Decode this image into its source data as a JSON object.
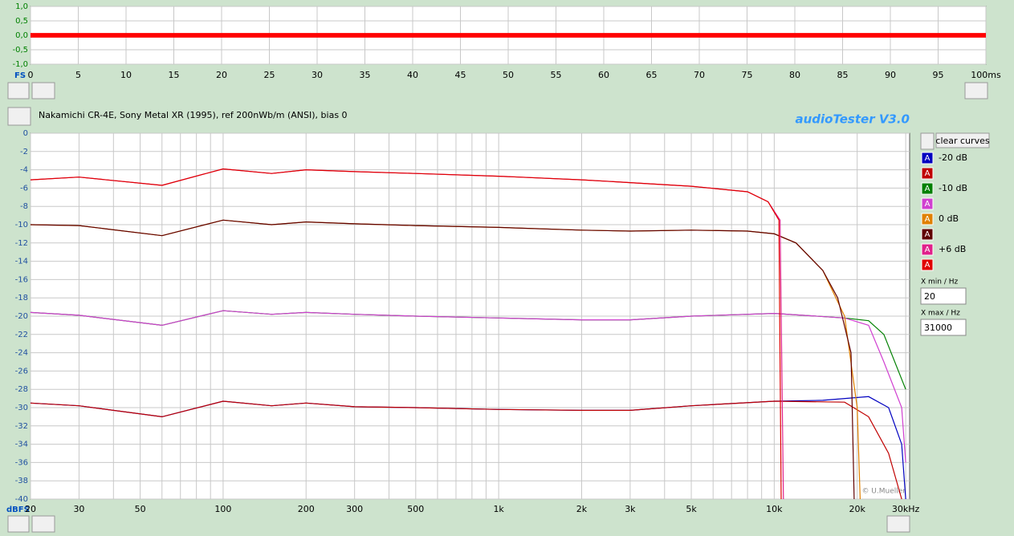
{
  "app_title": "audioTester  V3.0",
  "credit": "© U.Mueller",
  "controls": {
    "clear_button": "clear curves",
    "x_min_label": "X min / Hz",
    "x_max_label": "X max / Hz",
    "series_button": "A"
  },
  "chart_data": [
    {
      "type": "band",
      "unit_label": "FS",
      "xlim": [
        0,
        100
      ],
      "xticks": [
        0,
        5,
        10,
        15,
        20,
        25,
        30,
        35,
        40,
        45,
        50,
        55,
        60,
        65,
        70,
        75,
        80,
        85,
        90,
        95,
        {
          "value": 100,
          "label": "100ms"
        }
      ],
      "ylim": [
        -1,
        1
      ],
      "yticks": [
        {
          "value": 1,
          "label": "1,0"
        },
        {
          "value": 0.5,
          "label": "0,5"
        },
        {
          "value": 0,
          "label": "0,0"
        },
        {
          "value": -0.5,
          "label": "-0,5"
        },
        {
          "value": -1,
          "label": "-1,0"
        }
      ],
      "grid": true,
      "series": [
        {
          "color": "#ff0000",
          "x": [
            0,
            100
          ],
          "high": [
            0.08,
            0.08
          ],
          "low": [
            -0.08,
            -0.08
          ]
        }
      ]
    },
    {
      "type": "line",
      "title": "Nakamichi CR-4E, Sony Metal XR (1995), ref 200nWb/m (ANSI), bias 0",
      "unit_label": "dBFS",
      "xscale": "log",
      "xlim": [
        20,
        31000
      ],
      "xticks": [
        20,
        30,
        50,
        100,
        200,
        300,
        500,
        {
          "value": 1000,
          "label": "1k"
        },
        {
          "value": 2000,
          "label": "2k"
        },
        {
          "value": 3000,
          "label": "3k"
        },
        {
          "value": 5000,
          "label": "5k"
        },
        {
          "value": 10000,
          "label": "10k"
        },
        {
          "value": 20000,
          "label": "20k"
        },
        {
          "value": 30000,
          "label": "30kHz"
        }
      ],
      "x_minor_grid": [
        40,
        60,
        70,
        80,
        90,
        400,
        600,
        700,
        800,
        900,
        4000,
        6000,
        7000,
        8000,
        9000
      ],
      "ylim": [
        -40,
        0
      ],
      "yticks": [
        0,
        -2,
        -4,
        -6,
        -8,
        -10,
        -12,
        -14,
        -16,
        -18,
        -20,
        -22,
        -24,
        -26,
        -28,
        -30,
        -32,
        -34,
        -36,
        -38,
        -40
      ],
      "grid": true,
      "series": [
        {
          "name": "-20 dB",
          "color": "#0000c0",
          "x": [
            20,
            30,
            60,
            100,
            150,
            200,
            300,
            500,
            1000,
            2000,
            3000,
            5000,
            10000,
            15000,
            22000,
            26000,
            29000,
            30000
          ],
          "values": [
            -29.5,
            -29.8,
            -31,
            -29.3,
            -29.8,
            -29.5,
            -29.9,
            -30,
            -30.2,
            -30.3,
            -30.3,
            -29.8,
            -29.3,
            -29.2,
            -28.8,
            -30,
            -34,
            -40
          ]
        },
        {
          "color": "#c00000",
          "x": [
            20,
            30,
            60,
            100,
            150,
            200,
            300,
            500,
            1000,
            2000,
            3000,
            5000,
            10000,
            18000,
            22000,
            26000,
            29000
          ],
          "values": [
            -29.5,
            -29.8,
            -31,
            -29.3,
            -29.8,
            -29.5,
            -29.9,
            -30,
            -30.2,
            -30.3,
            -30.3,
            -29.8,
            -29.3,
            -29.4,
            -31,
            -35,
            -40
          ]
        },
        {
          "name": "-10 dB",
          "color": "#008000",
          "x": [
            20,
            30,
            60,
            100,
            150,
            200,
            300,
            500,
            1000,
            2000,
            3000,
            5000,
            10000,
            18000,
            22000,
            25000,
            30000
          ],
          "values": [
            -19.6,
            -19.9,
            -21,
            -19.4,
            -19.8,
            -19.6,
            -19.8,
            -20,
            -20.2,
            -20.4,
            -20.4,
            -20,
            -19.7,
            -20.2,
            -20.5,
            -22,
            -28
          ]
        },
        {
          "color": "#d040d0",
          "x": [
            20,
            30,
            60,
            100,
            150,
            200,
            300,
            500,
            1000,
            2000,
            3000,
            5000,
            10000,
            18000,
            22000,
            25000,
            29000,
            30000
          ],
          "values": [
            -19.6,
            -19.9,
            -21,
            -19.4,
            -19.8,
            -19.6,
            -19.8,
            -20,
            -20.2,
            -20.4,
            -20.4,
            -20,
            -19.7,
            -20.2,
            -21,
            -25,
            -30,
            -36
          ]
        },
        {
          "name": "0 dB",
          "color": "#e08000",
          "x": [
            20,
            30,
            60,
            100,
            150,
            200,
            300,
            500,
            1000,
            2000,
            3000,
            5000,
            8000,
            10000,
            12000,
            15000,
            18000,
            20000,
            20500
          ],
          "values": [
            -10,
            -10.1,
            -11.2,
            -9.5,
            -10,
            -9.7,
            -9.9,
            -10.1,
            -10.3,
            -10.6,
            -10.7,
            -10.6,
            -10.7,
            -11,
            -12,
            -15,
            -20,
            -30,
            -40
          ]
        },
        {
          "color": "#600000",
          "x": [
            20,
            30,
            60,
            100,
            150,
            200,
            300,
            500,
            1000,
            2000,
            3000,
            5000,
            8000,
            10000,
            12000,
            15000,
            17000,
            19000,
            19500
          ],
          "values": [
            -10,
            -10.1,
            -11.2,
            -9.5,
            -10,
            -9.7,
            -9.9,
            -10.1,
            -10.3,
            -10.6,
            -10.7,
            -10.6,
            -10.7,
            -11,
            -12,
            -15,
            -18,
            -24,
            -40
          ]
        },
        {
          "name": "+6 dB",
          "color": "#e0208a",
          "x": [
            20,
            30,
            60,
            100,
            150,
            200,
            300,
            500,
            1000,
            2000,
            3000,
            5000,
            8000,
            9500,
            10500,
            10800
          ],
          "values": [
            -5.1,
            -4.8,
            -5.7,
            -3.9,
            -4.4,
            -4,
            -4.2,
            -4.4,
            -4.7,
            -5.1,
            -5.4,
            -5.8,
            -6.4,
            -7.5,
            -9.5,
            -40
          ]
        },
        {
          "color": "#e00000",
          "x": [
            20,
            30,
            60,
            100,
            150,
            200,
            300,
            500,
            1000,
            2000,
            3000,
            5000,
            8000,
            9500,
            10400,
            10600
          ],
          "values": [
            -5.1,
            -4.8,
            -5.7,
            -3.9,
            -4.4,
            -4,
            -4.2,
            -4.4,
            -4.7,
            -5.1,
            -5.4,
            -5.8,
            -6.4,
            -7.5,
            -9.5,
            -40
          ]
        }
      ]
    }
  ]
}
